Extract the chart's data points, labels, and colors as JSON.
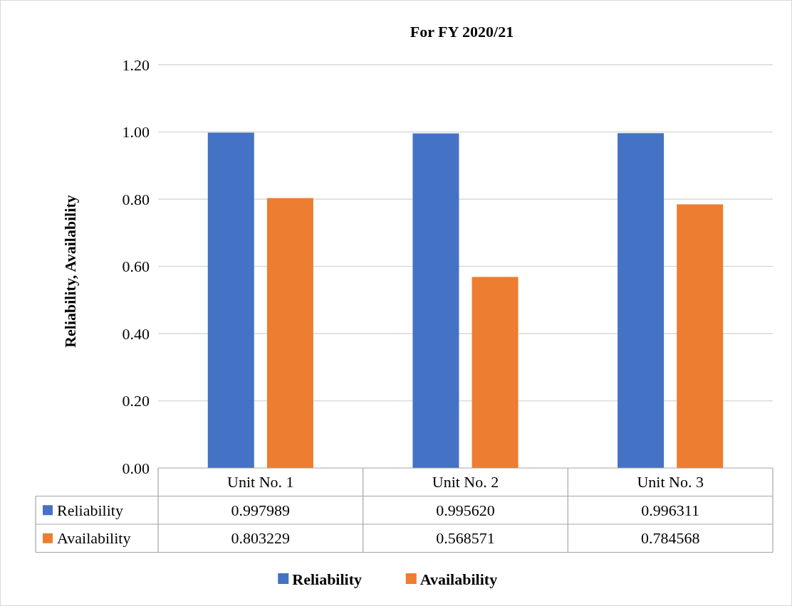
{
  "chart_data": {
    "type": "bar",
    "title": "For FY 2020/21",
    "ylabel": "Reliability, Availability",
    "categories": [
      "Unit No. 1",
      "Unit No. 2",
      "Unit No. 3"
    ],
    "series": [
      {
        "name": "Reliability",
        "color": "#4472c4",
        "values": [
          0.997989,
          0.99562,
          0.996311
        ],
        "value_labels": [
          "0.997989",
          "0.995620",
          "0.996311"
        ]
      },
      {
        "name": "Availability",
        "color": "#ed7d31",
        "values": [
          0.803229,
          0.568571,
          0.784568
        ],
        "value_labels": [
          "0.803229",
          "0.568571",
          "0.784568"
        ]
      }
    ],
    "ylim": [
      0,
      1.2
    ],
    "yticks": [
      {
        "value": 0,
        "label": "0.00"
      },
      {
        "value": 0.2,
        "label": "0.20"
      },
      {
        "value": 0.4,
        "label": "0.40"
      },
      {
        "value": 0.6,
        "label": "0.60"
      },
      {
        "value": 0.8,
        "label": "0.80"
      },
      {
        "value": 1,
        "label": "1.00"
      },
      {
        "value": 1.2,
        "label": "1.20"
      }
    ],
    "grid": "y",
    "legend": "bottom"
  }
}
